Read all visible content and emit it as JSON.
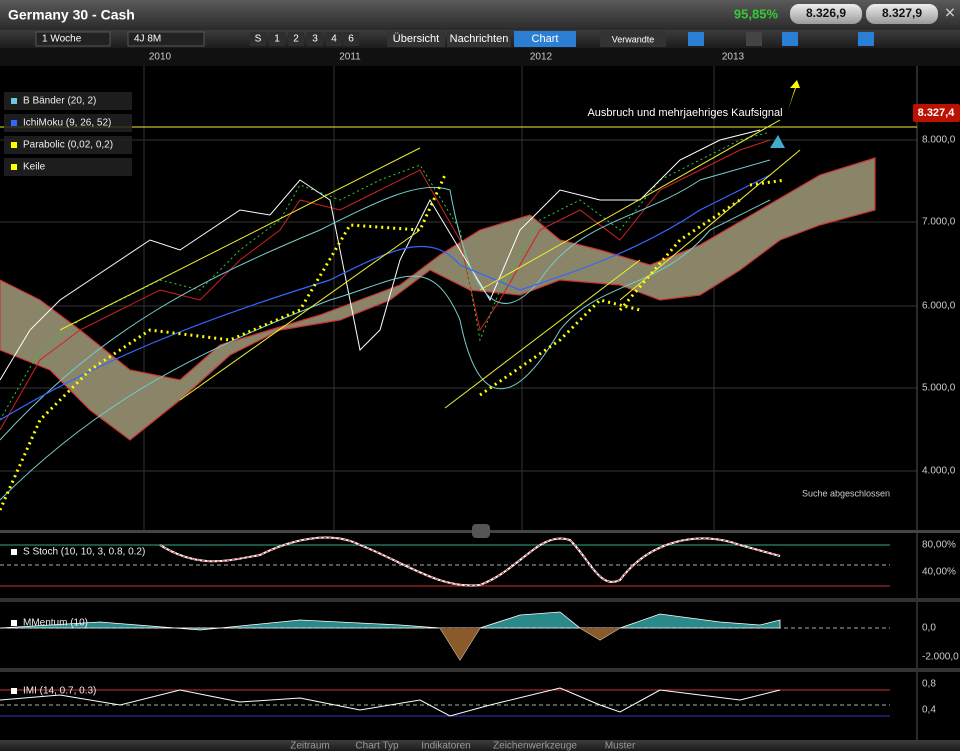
{
  "header": {
    "title": "Germany 30 - Cash",
    "change": "95,85%",
    "bid": "8.326,9",
    "ask": "8.327,9"
  },
  "toolbar": {
    "interval": "1 Woche",
    "range": "4J 8M",
    "buttons": [
      "S",
      "1",
      "2",
      "3",
      "4",
      "6"
    ],
    "tabs": [
      "Übersicht",
      "Nachrichten",
      "Chart",
      "Verwandte"
    ]
  },
  "time_axis": [
    "2010",
    "2011",
    "2012",
    "2013"
  ],
  "main_panel": {
    "legend": [
      "B Bänder (20, 2)",
      "IchiMoku (9, 26, 52)",
      "Parabolic (0,02, 0,2)",
      "Keile"
    ],
    "price_tag": "8.327,4",
    "annotation": "Ausbruch und mehrjaehriges Kaufsignal",
    "status": "Suche abgeschlossen",
    "axis_labels": [
      "8.000,0",
      "7.000,0",
      "6.000,0",
      "5.000,0",
      "4.000,0"
    ]
  },
  "indicator_panels": [
    {
      "name": "S Stoch (10, 10, 3, 0.8, 0.2)",
      "axis_labels": [
        "80,00%",
        "40,00%"
      ]
    },
    {
      "name": "MMentum (10)",
      "axis_labels": [
        "0,0",
        "-2.000,0"
      ]
    },
    {
      "name": "IMI (14, 0.7, 0.3)",
      "axis_labels": [
        "0,8",
        "0,4"
      ]
    }
  ],
  "bottom_bar": [
    "Zeitraum",
    "Chart Typ",
    "Indikatoren",
    "Zeichenwerkzeuge",
    "Muster"
  ]
}
